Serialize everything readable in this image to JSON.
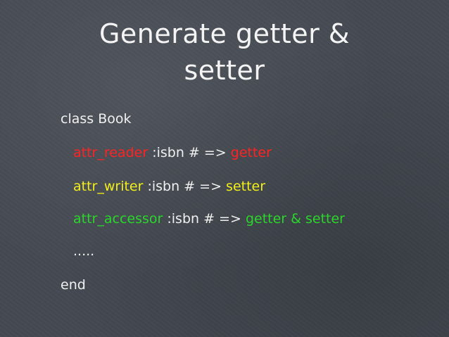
{
  "slide": {
    "title_line1": "Generate getter &",
    "title_line2": "setter",
    "lines": {
      "class_decl": "class Book",
      "reader": {
        "keyword": "attr_reader",
        "middle": " :isbn # => ",
        "result": "getter"
      },
      "writer": {
        "keyword": "attr_writer",
        "middle": " :isbn # => ",
        "result": "setter"
      },
      "accessor": {
        "keyword": "attr_accessor",
        "middle": " :isbn # => ",
        "result": "getter & setter"
      },
      "ellipsis": ".....",
      "end": "end"
    },
    "colors": {
      "background": "#454a52",
      "text": "#f0f0f0",
      "reader": "#ff2222",
      "writer": "#f2ee1a",
      "accessor": "#2bd62b"
    }
  }
}
